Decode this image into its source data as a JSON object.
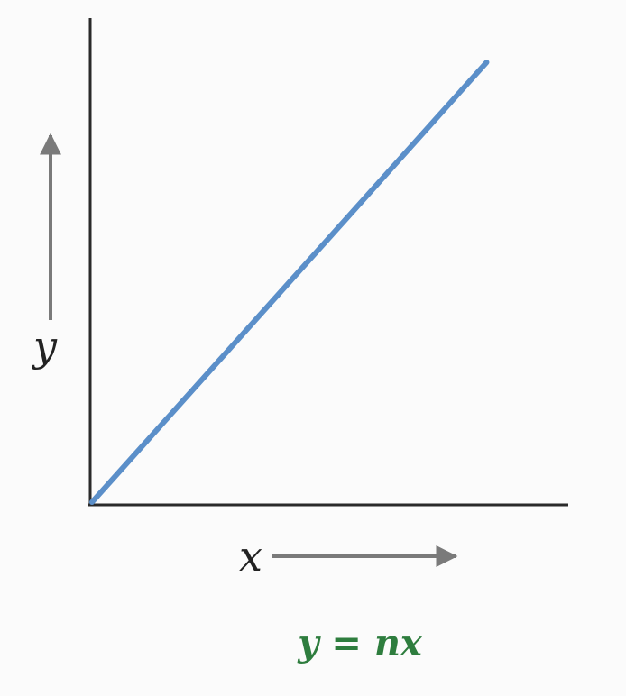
{
  "chart_data": {
    "type": "line",
    "xlabel": "x",
    "ylabel": "y",
    "equation": "y = nx",
    "series": [
      {
        "x": [
          0,
          1
        ],
        "y": [
          0,
          1
        ]
      }
    ],
    "xlim": [
      0,
      1.2
    ],
    "ylim": [
      0,
      1.1
    ],
    "grid": false,
    "axis_arrows": true
  },
  "colors": {
    "line": "#5b8fc9",
    "axes": "#2a2a2a",
    "arrows": "#7a7a7a",
    "equation": "#2e7d3e",
    "text": "#222222"
  }
}
